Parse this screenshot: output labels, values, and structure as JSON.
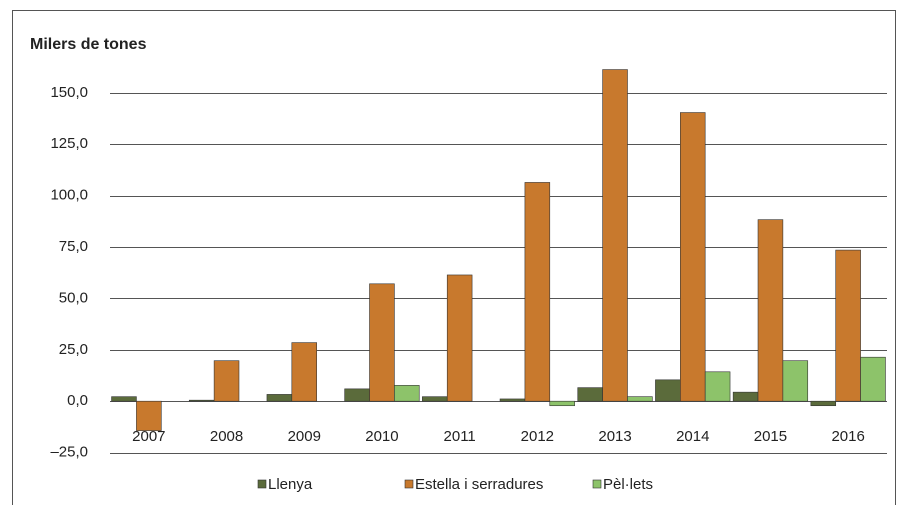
{
  "chart_data": {
    "type": "bar",
    "title": "Milers de tones",
    "categories": [
      "2007",
      "2008",
      "2009",
      "2010",
      "2011",
      "2012",
      "2013",
      "2014",
      "2015",
      "2016"
    ],
    "series": [
      {
        "name": "Llenya",
        "color": "#5b6b3b",
        "values": [
          2.2,
          0.5,
          3.3,
          6.0,
          2.2,
          1.1,
          6.6,
          10.4,
          4.4,
          -2.2
        ]
      },
      {
        "name": "Estella i serradures",
        "color": "#c8792d",
        "values": [
          -14.3,
          19.7,
          28.5,
          57.1,
          61.4,
          106.4,
          161.3,
          140.4,
          88.3,
          73.5
        ]
      },
      {
        "name": "Pèl·lets",
        "color": "#8dc36a",
        "values": [
          0,
          0,
          0,
          7.7,
          0,
          -2.2,
          2.2,
          14.3,
          19.7,
          21.4
        ]
      }
    ],
    "ylim": [
      -25,
      175
    ],
    "yticks": [
      {
        "value": -25,
        "label": "–25,0"
      },
      {
        "value": 0,
        "label": "0,0"
      },
      {
        "value": 25,
        "label": "25,0"
      },
      {
        "value": 50,
        "label": "50,0"
      },
      {
        "value": 75,
        "label": "75,0"
      },
      {
        "value": 100,
        "label": "100,0"
      },
      {
        "value": 125,
        "label": "125,0"
      },
      {
        "value": 150,
        "label": "150,0"
      }
    ],
    "grid": true,
    "legend": "bottom"
  }
}
